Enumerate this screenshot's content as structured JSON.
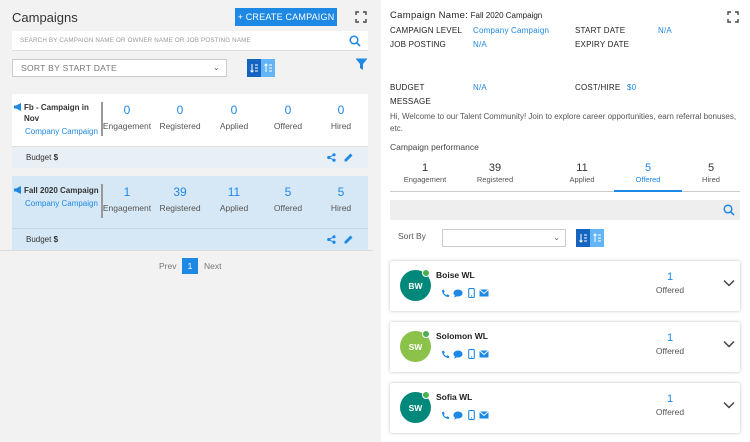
{
  "left": {
    "title": "Campaigns",
    "create_button": "+ CREATE CAMPAIGN",
    "search_placeholder": "SEARCH BY CAMPAIGN NAME OR OWNER NAME OR JOB POSTING NAME",
    "sort_value": "SORT BY START DATE",
    "campaigns": [
      {
        "name": "Fb - Campaign in Nov",
        "level": "Company Campaign",
        "stats": [
          {
            "value": "0",
            "label": "Engagement"
          },
          {
            "value": "0",
            "label": "Registered"
          },
          {
            "value": "0",
            "label": "Applied"
          },
          {
            "value": "0",
            "label": "Offered"
          },
          {
            "value": "0",
            "label": "Hired"
          }
        ],
        "budget_label": "Budget",
        "budget_value": "$"
      },
      {
        "name": "Fall 2020 Campaign",
        "level": "Company Campaign",
        "stats": [
          {
            "value": "1",
            "label": "Engagement"
          },
          {
            "value": "39",
            "label": "Registered"
          },
          {
            "value": "11",
            "label": "Applied"
          },
          {
            "value": "5",
            "label": "Offered"
          },
          {
            "value": "5",
            "label": "Hired"
          }
        ],
        "budget_label": "Budget",
        "budget_value": "$"
      }
    ],
    "pager": {
      "prev": "Prev",
      "current": "1",
      "next": "Next"
    }
  },
  "right": {
    "name_label": "Campaign Name:",
    "name_value": "Fall 2020 Campaign",
    "fields": {
      "level_label": "CAMPAIGN LEVEL",
      "level_value": "Company Campaign",
      "start_label": "START DATE",
      "start_value": "N/A",
      "posting_label": "JOB POSTING",
      "posting_value": "N/A",
      "expiry_label": "EXPIRY DATE",
      "budget_label": "BUDGET",
      "budget_value": "N/A",
      "cost_label": "COST/HIRE",
      "cost_value": "$0",
      "message_label": "MESSAGE"
    },
    "message": "Hi, Welcome to our Talent Community! Join to explore career opportunities, earn referral bonuses, etc.",
    "performance_title": "Campaign performance",
    "performance": [
      {
        "value": "1",
        "label": "Engagement"
      },
      {
        "value": "39",
        "label": "Registered"
      },
      {
        "value": "11",
        "label": "Applied"
      },
      {
        "value": "5",
        "label": "Offered"
      },
      {
        "value": "5",
        "label": "Hired"
      }
    ],
    "sort_by_label": "Sort By",
    "candidates": [
      {
        "initials": "BW",
        "name": "Boise WL",
        "count": "1",
        "stage": "Offered",
        "color": "#00897b"
      },
      {
        "initials": "SW",
        "name": "Solomon WL",
        "count": "1",
        "stage": "Offered",
        "color": "#8bc34a"
      },
      {
        "initials": "SW",
        "name": "Sofia WL",
        "count": "1",
        "stage": "Offered",
        "color": "#00897b"
      }
    ]
  },
  "colors": {
    "accent": "#1e88e5",
    "online": "#4caf50"
  }
}
